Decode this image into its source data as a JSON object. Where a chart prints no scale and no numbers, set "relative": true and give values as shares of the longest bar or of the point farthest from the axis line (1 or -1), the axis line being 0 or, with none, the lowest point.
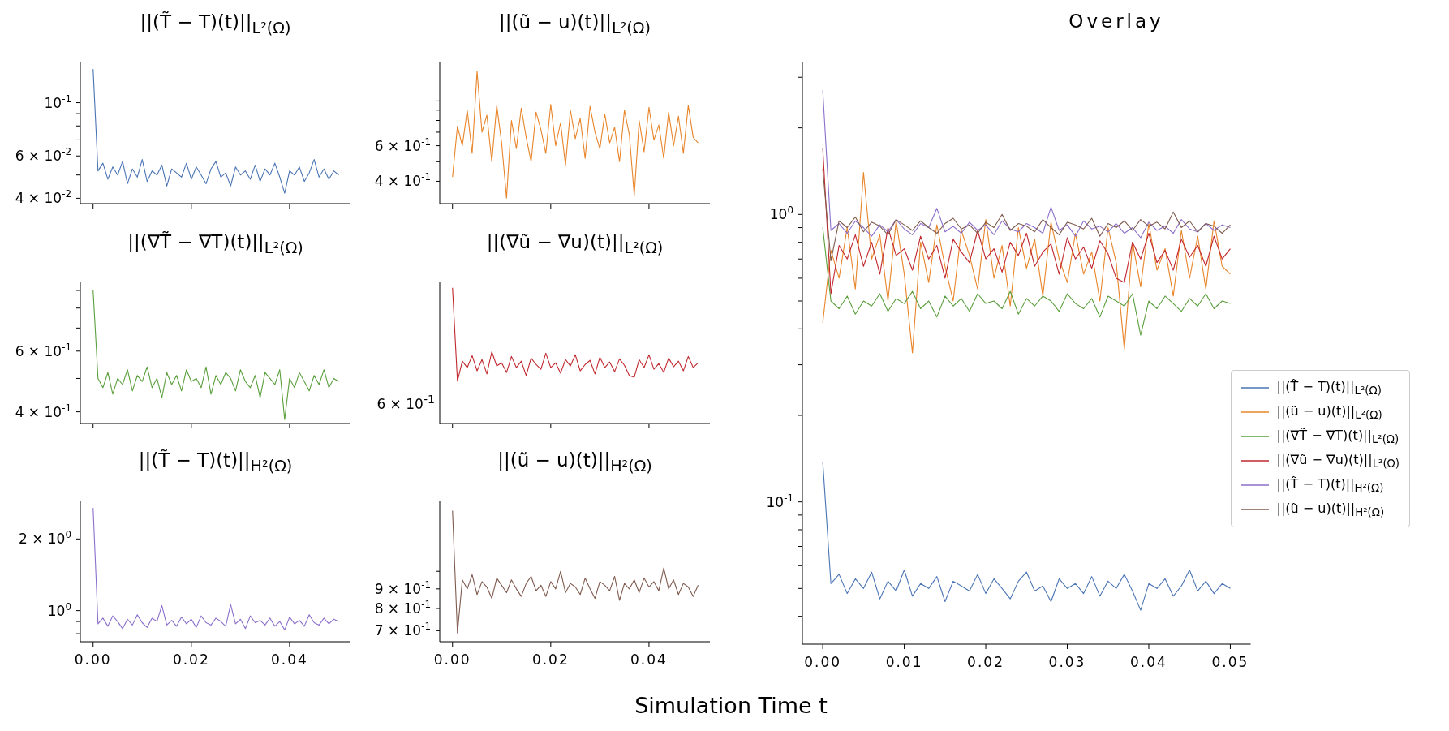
{
  "chart_data": [
    {
      "type": "line",
      "title": "||(T̃ − T)(t)||$_{L²(Ω)}$",
      "log": true,
      "tick_labels": "y",
      "xlim": [
        -0.0026,
        0.0524
      ],
      "xticks": [
        {
          "value": 0,
          "label": null
        },
        {
          "value": 0.02,
          "label": null
        },
        {
          "value": 0.04,
          "label": null
        }
      ],
      "ylim": [
        0.038,
        0.147
      ],
      "yticks": [
        {
          "value": 0.04,
          "label": "4 × 10$^{-2}$"
        },
        {
          "value": 0.05,
          "label": null
        },
        {
          "value": 0.06,
          "label": "6 × 10$^{-2}$"
        },
        {
          "value": 0.07,
          "label": null
        },
        {
          "value": 0.08,
          "label": null
        },
        {
          "value": 0.09,
          "label": null
        },
        {
          "value": 0.1,
          "label": "10$^{-1}$"
        }
      ],
      "x": [
        0,
        0.001,
        0.002,
        0.003,
        0.004,
        0.005,
        0.006,
        0.007,
        0.008,
        0.009,
        0.01,
        0.011,
        0.012,
        0.013,
        0.014,
        0.015,
        0.016,
        0.017,
        0.018,
        0.019,
        0.02,
        0.021,
        0.022,
        0.023,
        0.024,
        0.025,
        0.026,
        0.027,
        0.028,
        0.029,
        0.03,
        0.031,
        0.032,
        0.033,
        0.034,
        0.035,
        0.036,
        0.037,
        0.038,
        0.039,
        0.04,
        0.041,
        0.042,
        0.043,
        0.044,
        0.045,
        0.046,
        0.047,
        0.048,
        0.049,
        0.05
      ],
      "series": [
        {
          "color": "#4a74b4",
          "values": [
            0.138,
            0.052,
            0.056,
            0.048,
            0.054,
            0.05,
            0.057,
            0.046,
            0.053,
            0.049,
            0.058,
            0.047,
            0.052,
            0.05,
            0.055,
            0.045,
            0.053,
            0.051,
            0.049,
            0.056,
            0.048,
            0.054,
            0.05,
            0.046,
            0.053,
            0.057,
            0.049,
            0.051,
            0.045,
            0.054,
            0.05,
            0.052,
            0.048,
            0.055,
            0.047,
            0.053,
            0.05,
            0.056,
            0.049,
            0.042,
            0.052,
            0.05,
            0.054,
            0.047,
            0.051,
            0.058,
            0.049,
            0.053,
            0.048,
            0.052,
            0.05
          ]
        }
      ]
    },
    {
      "type": "line",
      "title": "||(ũ − u)(t)||$_{L²(Ω)}$",
      "log": true,
      "tick_labels": "y",
      "xlim": [
        -0.0026,
        0.0524
      ],
      "xticks": [
        {
          "value": 0,
          "label": null
        },
        {
          "value": 0.02,
          "label": null
        },
        {
          "value": 0.04,
          "label": null
        }
      ],
      "ylim": [
        0.31,
        1.55
      ],
      "yticks": [
        {
          "value": 0.4,
          "label": "4 × 10$^{-1}$"
        },
        {
          "value": 0.5,
          "label": null
        },
        {
          "value": 0.6,
          "label": "6 × 10$^{-1}$"
        },
        {
          "value": 0.7,
          "label": null
        },
        {
          "value": 0.8,
          "label": null
        },
        {
          "value": 0.9,
          "label": null
        },
        {
          "value": 1,
          "label": null
        }
      ],
      "x": [
        0,
        0.001,
        0.002,
        0.003,
        0.004,
        0.005,
        0.006,
        0.007,
        0.008,
        0.009,
        0.01,
        0.011,
        0.012,
        0.013,
        0.014,
        0.015,
        0.016,
        0.017,
        0.018,
        0.019,
        0.02,
        0.021,
        0.022,
        0.023,
        0.024,
        0.025,
        0.026,
        0.027,
        0.028,
        0.029,
        0.03,
        0.031,
        0.032,
        0.033,
        0.034,
        0.035,
        0.036,
        0.037,
        0.038,
        0.039,
        0.04,
        0.041,
        0.042,
        0.043,
        0.044,
        0.045,
        0.046,
        0.047,
        0.048,
        0.049,
        0.05
      ],
      "series": [
        {
          "color": "#e8852a",
          "values": [
            0.42,
            0.75,
            0.6,
            0.9,
            0.55,
            1.4,
            0.7,
            0.85,
            0.5,
            0.95,
            0.62,
            0.33,
            0.8,
            0.58,
            0.92,
            0.66,
            0.5,
            0.88,
            0.72,
            0.55,
            0.96,
            0.6,
            0.78,
            0.48,
            0.9,
            0.65,
            0.82,
            0.52,
            0.94,
            0.7,
            0.58,
            0.86,
            0.62,
            0.74,
            0.5,
            0.9,
            0.68,
            0.34,
            0.8,
            0.56,
            0.93,
            0.64,
            0.76,
            0.52,
            0.88,
            0.6,
            0.84,
            0.55,
            0.95,
            0.66,
            0.62
          ]
        }
      ]
    },
    {
      "type": "line",
      "title": "||(∇T̃ − ∇T)(t)||$_{L²(Ω)}$",
      "log": true,
      "tick_labels": "y",
      "xlim": [
        -0.0026,
        0.0524
      ],
      "xticks": [
        {
          "value": 0,
          "label": null
        },
        {
          "value": 0.02,
          "label": null
        },
        {
          "value": 0.04,
          "label": null
        }
      ],
      "ylim": [
        0.37,
        0.95
      ],
      "yticks": [
        {
          "value": 0.4,
          "label": "4 × 10$^{-1}$"
        },
        {
          "value": 0.5,
          "label": null
        },
        {
          "value": 0.6,
          "label": "6 × 10$^{-1}$"
        },
        {
          "value": 0.7,
          "label": null
        },
        {
          "value": 0.8,
          "label": null
        },
        {
          "value": 0.9,
          "label": null
        }
      ],
      "x": [
        0,
        0.001,
        0.002,
        0.003,
        0.004,
        0.005,
        0.006,
        0.007,
        0.008,
        0.009,
        0.01,
        0.011,
        0.012,
        0.013,
        0.014,
        0.015,
        0.016,
        0.017,
        0.018,
        0.019,
        0.02,
        0.021,
        0.022,
        0.023,
        0.024,
        0.025,
        0.026,
        0.027,
        0.028,
        0.029,
        0.03,
        0.031,
        0.032,
        0.033,
        0.034,
        0.035,
        0.036,
        0.037,
        0.038,
        0.039,
        0.04,
        0.041,
        0.042,
        0.043,
        0.044,
        0.045,
        0.046,
        0.047,
        0.048,
        0.049,
        0.05
      ],
      "series": [
        {
          "color": "#5a9f3c",
          "values": [
            0.9,
            0.5,
            0.47,
            0.52,
            0.45,
            0.5,
            0.48,
            0.53,
            0.46,
            0.51,
            0.49,
            0.54,
            0.47,
            0.5,
            0.44,
            0.52,
            0.48,
            0.51,
            0.46,
            0.53,
            0.49,
            0.5,
            0.47,
            0.54,
            0.45,
            0.51,
            0.48,
            0.52,
            0.5,
            0.46,
            0.53,
            0.49,
            0.47,
            0.51,
            0.44,
            0.52,
            0.5,
            0.48,
            0.53,
            0.38,
            0.5,
            0.47,
            0.52,
            0.49,
            0.46,
            0.51,
            0.48,
            0.53,
            0.47,
            0.5,
            0.49
          ]
        }
      ]
    },
    {
      "type": "line",
      "title": "||(∇ũ − ∇u)(t)||$_{L²(Ω)}$",
      "relative": true,
      "annotations": [
        "6 × 10$^{-1}$"
      ],
      "tick_labels": false,
      "xlim": [
        -0.0026,
        0.0524
      ],
      "xticks": [
        {
          "value": 0,
          "label": null
        },
        {
          "value": 0.02,
          "label": null
        },
        {
          "value": 0.04,
          "label": null
        }
      ],
      "x": [
        0,
        0.001,
        0.002,
        0.003,
        0.004,
        0.005,
        0.006,
        0.007,
        0.008,
        0.009,
        0.01,
        0.011,
        0.012,
        0.013,
        0.014,
        0.015,
        0.016,
        0.017,
        0.018,
        0.019,
        0.02,
        0.021,
        0.022,
        0.023,
        0.024,
        0.025,
        0.026,
        0.027,
        0.028,
        0.029,
        0.03,
        0.031,
        0.032,
        0.033,
        0.034,
        0.035,
        0.036,
        0.037,
        0.038,
        0.039,
        0.04,
        0.041,
        0.042,
        0.043,
        0.044,
        0.045,
        0.046,
        0.047,
        0.048,
        0.049,
        0.05
      ],
      "series": [
        {
          "color": "#c0272d",
          "values": [
            1,
            0.312,
            0.459,
            0.412,
            0.5,
            0.388,
            0.471,
            0.365,
            0.529,
            0.424,
            0.447,
            0.376,
            0.494,
            0.412,
            0.459,
            0.353,
            0.482,
            0.435,
            0.4,
            0.518,
            0.412,
            0.447,
            0.371,
            0.471,
            0.424,
            0.506,
            0.388,
            0.435,
            0.465,
            0.365,
            0.488,
            0.412,
            0.453,
            0.382,
            0.476,
            0.429,
            0.353,
            0.341,
            0.471,
            0.412,
            0.506,
            0.4,
            0.441,
            0.376,
            0.482,
            0.418,
            0.459,
            0.388,
            0.494,
            0.412,
            0.447
          ]
        }
      ]
    },
    {
      "type": "line",
      "title": "||(T̃ − T)(t)||$_{H²(Ω)}$",
      "log": true,
      "xlim": [
        -0.0026,
        0.0524
      ],
      "xticks": [
        {
          "value": 0,
          "label": "0.00"
        },
        {
          "value": 0.02,
          "label": "0.02"
        },
        {
          "value": 0.04,
          "label": "0.04"
        }
      ],
      "ylim": [
        0.74,
        2.9
      ],
      "yticks": [
        {
          "value": 0.8,
          "label": null
        },
        {
          "value": 0.9,
          "label": null
        },
        {
          "value": 1,
          "label": "10$^{0}$"
        },
        {
          "value": 2,
          "label": "2 × 10$^{0}$"
        }
      ],
      "x": [
        0,
        0.001,
        0.002,
        0.003,
        0.004,
        0.005,
        0.006,
        0.007,
        0.008,
        0.009,
        0.01,
        0.011,
        0.012,
        0.013,
        0.014,
        0.015,
        0.016,
        0.017,
        0.018,
        0.019,
        0.02,
        0.021,
        0.022,
        0.023,
        0.024,
        0.025,
        0.026,
        0.027,
        0.028,
        0.029,
        0.03,
        0.031,
        0.032,
        0.033,
        0.034,
        0.035,
        0.036,
        0.037,
        0.038,
        0.039,
        0.04,
        0.041,
        0.042,
        0.043,
        0.044,
        0.045,
        0.046,
        0.047,
        0.048,
        0.049,
        0.05
      ],
      "series": [
        {
          "color": "#8b6fcb",
          "values": [
            2.7,
            0.88,
            0.93,
            0.86,
            0.95,
            0.9,
            0.84,
            0.92,
            0.87,
            0.96,
            0.89,
            0.85,
            0.93,
            0.9,
            1.05,
            0.87,
            0.91,
            0.86,
            0.94,
            0.88,
            0.92,
            0.85,
            0.95,
            0.89,
            0.87,
            0.93,
            0.9,
            0.86,
            1.06,
            0.88,
            0.92,
            0.84,
            0.95,
            0.89,
            0.91,
            0.87,
            0.93,
            0.86,
            0.9,
            0.83,
            0.94,
            0.88,
            0.91,
            0.86,
            0.96,
            0.89,
            0.87,
            0.93,
            0.88,
            0.92,
            0.9
          ]
        }
      ]
    },
    {
      "type": "line",
      "title": "||(ũ − u)(t)||$_{H²(Ω)}$",
      "log": true,
      "xlim": [
        -0.0026,
        0.0524
      ],
      "xticks": [
        {
          "value": 0,
          "label": "0.00"
        },
        {
          "value": 0.02,
          "label": "0.02"
        },
        {
          "value": 0.04,
          "label": "0.04"
        }
      ],
      "ylim": [
        0.655,
        1.53
      ],
      "yticks": [
        {
          "value": 0.7,
          "label": "7 × 10$^{-1}$"
        },
        {
          "value": 0.8,
          "label": "8 × 10$^{-1}$"
        },
        {
          "value": 0.9,
          "label": "9 × 10$^{-1}$"
        },
        {
          "value": 1,
          "label": null
        }
      ],
      "x": [
        0,
        0.001,
        0.002,
        0.003,
        0.004,
        0.005,
        0.006,
        0.007,
        0.008,
        0.009,
        0.01,
        0.011,
        0.012,
        0.013,
        0.014,
        0.015,
        0.016,
        0.017,
        0.018,
        0.019,
        0.02,
        0.021,
        0.022,
        0.023,
        0.024,
        0.025,
        0.026,
        0.027,
        0.028,
        0.029,
        0.03,
        0.031,
        0.032,
        0.033,
        0.034,
        0.035,
        0.036,
        0.037,
        0.038,
        0.039,
        0.04,
        0.041,
        0.042,
        0.043,
        0.044,
        0.045,
        0.046,
        0.047,
        0.048,
        0.049,
        0.05
      ],
      "series": [
        {
          "color": "#7f5a4e",
          "values": [
            1.44,
            0.69,
            0.95,
            0.9,
            0.98,
            0.87,
            0.94,
            0.91,
            0.85,
            0.96,
            0.92,
            0.88,
            0.95,
            0.9,
            0.86,
            0.93,
            0.97,
            0.89,
            0.92,
            0.86,
            0.94,
            0.9,
            1.0,
            0.88,
            0.93,
            0.91,
            0.87,
            0.96,
            0.9,
            0.85,
            0.94,
            0.92,
            0.89,
            0.97,
            0.84,
            0.93,
            0.9,
            0.95,
            0.88,
            0.96,
            0.91,
            0.94,
            0.89,
            1.02,
            0.9,
            0.95,
            0.87,
            0.93,
            0.91,
            0.86,
            0.92
          ]
        }
      ]
    },
    {
      "type": "line",
      "title": "Overlay",
      "xlabel": "Simulation Time t",
      "log": true,
      "legend": "right",
      "xlim": [
        -0.0025,
        0.0525
      ],
      "xticks": [
        {
          "value": 0,
          "label": "0.00"
        },
        {
          "value": 0.01,
          "label": "0.01"
        },
        {
          "value": 0.02,
          "label": "0.02"
        },
        {
          "value": 0.03,
          "label": "0.03"
        },
        {
          "value": 0.04,
          "label": "0.04"
        },
        {
          "value": 0.05,
          "label": "0.05"
        }
      ],
      "ylim": [
        0.032,
        3.4
      ],
      "yticks": [
        {
          "value": 0.04,
          "label": null
        },
        {
          "value": 0.05,
          "label": null
        },
        {
          "value": 0.06,
          "label": null
        },
        {
          "value": 0.07,
          "label": null
        },
        {
          "value": 0.08,
          "label": null
        },
        {
          "value": 0.09,
          "label": null
        },
        {
          "value": 0.1,
          "label": "10$^{-1}$"
        },
        {
          "value": 0.2,
          "label": null
        },
        {
          "value": 0.3,
          "label": null
        },
        {
          "value": 0.4,
          "label": null
        },
        {
          "value": 0.5,
          "label": null
        },
        {
          "value": 0.6,
          "label": null
        },
        {
          "value": 0.7,
          "label": null
        },
        {
          "value": 0.8,
          "label": null
        },
        {
          "value": 0.9,
          "label": null
        },
        {
          "value": 1,
          "label": "10$^{0}$"
        },
        {
          "value": 2,
          "label": null
        },
        {
          "value": 3,
          "label": null
        }
      ],
      "x": [
        0,
        0.001,
        0.002,
        0.003,
        0.004,
        0.005,
        0.006,
        0.007,
        0.008,
        0.009,
        0.01,
        0.011,
        0.012,
        0.013,
        0.014,
        0.015,
        0.016,
        0.017,
        0.018,
        0.019,
        0.02,
        0.021,
        0.022,
        0.023,
        0.024,
        0.025,
        0.026,
        0.027,
        0.028,
        0.029,
        0.03,
        0.031,
        0.032,
        0.033,
        0.034,
        0.035,
        0.036,
        0.037,
        0.038,
        0.039,
        0.04,
        0.041,
        0.042,
        0.043,
        0.044,
        0.045,
        0.046,
        0.047,
        0.048,
        0.049,
        0.05
      ],
      "series": [
        {
          "name": "||(T̃ − T)(t)||$_{L²(Ω)}$",
          "color": "#4a74b4",
          "values": [
            0.138,
            0.052,
            0.056,
            0.048,
            0.054,
            0.05,
            0.057,
            0.046,
            0.053,
            0.049,
            0.058,
            0.047,
            0.052,
            0.05,
            0.055,
            0.045,
            0.053,
            0.051,
            0.049,
            0.056,
            0.048,
            0.054,
            0.05,
            0.046,
            0.053,
            0.057,
            0.049,
            0.051,
            0.045,
            0.054,
            0.05,
            0.052,
            0.048,
            0.055,
            0.047,
            0.053,
            0.05,
            0.056,
            0.049,
            0.042,
            0.052,
            0.05,
            0.054,
            0.047,
            0.051,
            0.058,
            0.049,
            0.053,
            0.048,
            0.052,
            0.05
          ]
        },
        {
          "name": "||(ũ − u)(t)||$_{L²(Ω)}$",
          "color": "#e8852a",
          "values": [
            0.42,
            0.75,
            0.6,
            0.9,
            0.55,
            1.4,
            0.7,
            0.85,
            0.5,
            0.95,
            0.62,
            0.33,
            0.8,
            0.58,
            0.92,
            0.66,
            0.5,
            0.88,
            0.72,
            0.55,
            0.96,
            0.6,
            0.78,
            0.48,
            0.9,
            0.65,
            0.82,
            0.52,
            0.94,
            0.7,
            0.58,
            0.86,
            0.62,
            0.74,
            0.5,
            0.9,
            0.68,
            0.34,
            0.8,
            0.56,
            0.93,
            0.64,
            0.76,
            0.52,
            0.88,
            0.6,
            0.84,
            0.55,
            0.95,
            0.66,
            0.62
          ]
        },
        {
          "name": "||(∇T̃ − ∇T)(t)||$_{L²(Ω)}$",
          "color": "#5a9f3c",
          "values": [
            0.9,
            0.5,
            0.47,
            0.52,
            0.45,
            0.5,
            0.48,
            0.53,
            0.46,
            0.51,
            0.49,
            0.54,
            0.47,
            0.5,
            0.44,
            0.52,
            0.48,
            0.51,
            0.46,
            0.53,
            0.49,
            0.5,
            0.47,
            0.54,
            0.45,
            0.51,
            0.48,
            0.52,
            0.5,
            0.46,
            0.53,
            0.49,
            0.47,
            0.51,
            0.44,
            0.52,
            0.5,
            0.48,
            0.53,
            0.38,
            0.5,
            0.47,
            0.52,
            0.49,
            0.46,
            0.51,
            0.48,
            0.53,
            0.47,
            0.5,
            0.49
          ]
        },
        {
          "name": "||(∇ũ − ∇u)(t)||$_{L²(Ω)}$",
          "color": "#c0272d",
          "values": [
            1.7,
            0.53,
            0.78,
            0.7,
            0.85,
            0.66,
            0.8,
            0.62,
            0.9,
            0.72,
            0.76,
            0.64,
            0.84,
            0.7,
            0.78,
            0.6,
            0.82,
            0.74,
            0.68,
            0.88,
            0.7,
            0.76,
            0.63,
            0.8,
            0.72,
            0.86,
            0.66,
            0.74,
            0.79,
            0.62,
            0.83,
            0.7,
            0.77,
            0.65,
            0.81,
            0.73,
            0.6,
            0.58,
            0.8,
            0.7,
            0.86,
            0.68,
            0.75,
            0.64,
            0.82,
            0.71,
            0.78,
            0.66,
            0.84,
            0.7,
            0.76
          ]
        },
        {
          "name": "||(T̃ − T)(t)||$_{H²(Ω)}$",
          "color": "#8b6fcb",
          "values": [
            2.7,
            0.88,
            0.93,
            0.86,
            0.95,
            0.9,
            0.84,
            0.92,
            0.87,
            0.96,
            0.89,
            0.85,
            0.93,
            0.9,
            1.05,
            0.87,
            0.91,
            0.86,
            0.94,
            0.88,
            0.92,
            0.85,
            0.95,
            0.89,
            0.87,
            0.93,
            0.9,
            0.86,
            1.06,
            0.88,
            0.92,
            0.84,
            0.95,
            0.89,
            0.91,
            0.87,
            0.93,
            0.86,
            0.9,
            0.83,
            0.94,
            0.88,
            0.91,
            0.86,
            0.96,
            0.89,
            0.87,
            0.93,
            0.88,
            0.92,
            0.9
          ]
        },
        {
          "name": "||(ũ − u)(t)||$_{H²(Ω)}$",
          "color": "#7f5a4e",
          "values": [
            1.44,
            0.69,
            0.95,
            0.9,
            0.98,
            0.87,
            0.94,
            0.91,
            0.85,
            0.96,
            0.92,
            0.88,
            0.95,
            0.9,
            0.86,
            0.93,
            0.97,
            0.89,
            0.92,
            0.86,
            0.94,
            0.9,
            1.0,
            0.88,
            0.93,
            0.91,
            0.87,
            0.96,
            0.9,
            0.85,
            0.94,
            0.92,
            0.89,
            0.97,
            0.84,
            0.93,
            0.9,
            0.95,
            0.88,
            0.96,
            0.91,
            0.94,
            0.89,
            1.02,
            0.9,
            0.95,
            0.87,
            0.93,
            0.91,
            0.86,
            0.92
          ]
        }
      ]
    }
  ]
}
